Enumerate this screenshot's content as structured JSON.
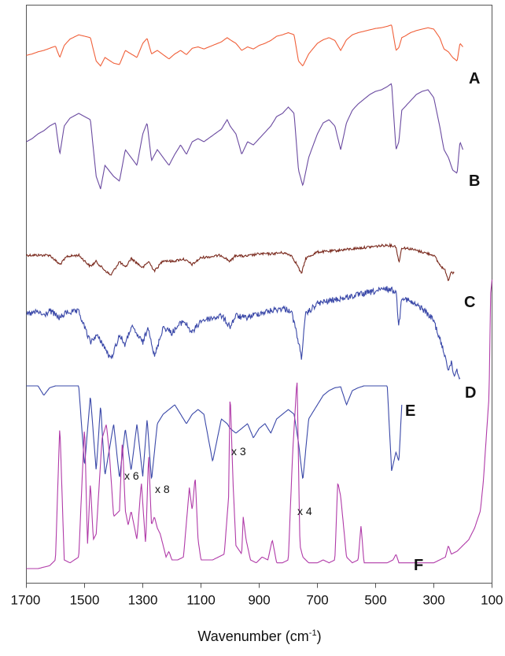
{
  "chart_data": {
    "type": "line",
    "title": "",
    "xlabel": "Wavenumber (cm",
    "xlabel_sup": "-1",
    "xlabel_end": ")",
    "ylabel": "",
    "xlim": [
      1700,
      100
    ],
    "x_reversed": true,
    "grid": false,
    "tick_labels": [
      "1700",
      "1500",
      "1300",
      "1100",
      "900",
      "700",
      "500",
      "300",
      "100"
    ],
    "colors": {
      "A": "#f0603a",
      "B": "#6a4aa0",
      "C": "#7a2a1e",
      "D": "#3a48a8",
      "E": "#3a48a8",
      "F": "#b03aa8"
    },
    "series": [
      {
        "name": "A",
        "label": "A",
        "baseline": 0.1,
        "noise": 0.0,
        "xrange": [
          1700,
          200
        ],
        "x": [
          1700,
          1680,
          1660,
          1640,
          1620,
          1600,
          1585,
          1570,
          1550,
          1520,
          1500,
          1480,
          1460,
          1445,
          1430,
          1400,
          1380,
          1360,
          1340,
          1320,
          1300,
          1285,
          1270,
          1250,
          1230,
          1210,
          1190,
          1170,
          1150,
          1130,
          1110,
          1090,
          1060,
          1030,
          1010,
          1000,
          980,
          960,
          940,
          920,
          900,
          880,
          860,
          840,
          820,
          800,
          780,
          765,
          750,
          730,
          700,
          680,
          660,
          640,
          620,
          600,
          580,
          560,
          540,
          520,
          500,
          480,
          460,
          445,
          430,
          420,
          410,
          400,
          380,
          360,
          340,
          320,
          300,
          280,
          265,
          250,
          235,
          220,
          210,
          200
        ],
        "y": [
          0.47,
          0.45,
          0.42,
          0.4,
          0.37,
          0.34,
          0.5,
          0.33,
          0.24,
          0.18,
          0.2,
          0.22,
          0.55,
          0.62,
          0.5,
          0.58,
          0.6,
          0.4,
          0.45,
          0.5,
          0.3,
          0.23,
          0.45,
          0.4,
          0.46,
          0.52,
          0.45,
          0.4,
          0.46,
          0.37,
          0.35,
          0.38,
          0.33,
          0.28,
          0.22,
          0.25,
          0.3,
          0.4,
          0.35,
          0.38,
          0.33,
          0.3,
          0.26,
          0.2,
          0.18,
          0.15,
          0.18,
          0.55,
          0.62,
          0.45,
          0.3,
          0.25,
          0.22,
          0.26,
          0.4,
          0.25,
          0.18,
          0.15,
          0.13,
          0.11,
          0.09,
          0.08,
          0.06,
          0.04,
          0.4,
          0.36,
          0.22,
          0.2,
          0.15,
          0.12,
          0.1,
          0.08,
          0.1,
          0.22,
          0.38,
          0.42,
          0.5,
          0.55,
          0.3,
          0.35
        ]
      },
      {
        "name": "B",
        "label": "B",
        "baseline": 0.3,
        "noise": 0.0,
        "xrange": [
          1700,
          200
        ],
        "x": [
          1700,
          1680,
          1660,
          1640,
          1620,
          1600,
          1585,
          1570,
          1550,
          1520,
          1500,
          1480,
          1460,
          1445,
          1430,
          1400,
          1380,
          1360,
          1340,
          1320,
          1300,
          1285,
          1270,
          1250,
          1230,
          1210,
          1190,
          1170,
          1150,
          1130,
          1110,
          1090,
          1060,
          1030,
          1010,
          1000,
          980,
          960,
          940,
          920,
          900,
          880,
          860,
          840,
          820,
          800,
          780,
          765,
          750,
          730,
          700,
          680,
          660,
          640,
          620,
          600,
          580,
          560,
          540,
          520,
          500,
          480,
          460,
          445,
          430,
          420,
          410,
          400,
          380,
          360,
          340,
          320,
          300,
          280,
          265,
          250,
          235,
          220,
          210,
          200
        ],
        "y": [
          0.4,
          0.38,
          0.35,
          0.33,
          0.3,
          0.28,
          0.48,
          0.3,
          0.25,
          0.22,
          0.24,
          0.26,
          0.62,
          0.7,
          0.55,
          0.62,
          0.65,
          0.45,
          0.5,
          0.55,
          0.35,
          0.28,
          0.52,
          0.45,
          0.5,
          0.55,
          0.48,
          0.42,
          0.48,
          0.4,
          0.38,
          0.4,
          0.36,
          0.32,
          0.26,
          0.3,
          0.35,
          0.48,
          0.4,
          0.42,
          0.38,
          0.34,
          0.3,
          0.24,
          0.22,
          0.18,
          0.22,
          0.58,
          0.68,
          0.5,
          0.35,
          0.28,
          0.26,
          0.3,
          0.45,
          0.28,
          0.2,
          0.16,
          0.13,
          0.1,
          0.08,
          0.07,
          0.05,
          0.03,
          0.45,
          0.4,
          0.2,
          0.18,
          0.14,
          0.1,
          0.08,
          0.07,
          0.12,
          0.3,
          0.45,
          0.5,
          0.58,
          0.6,
          0.4,
          0.45
        ]
      },
      {
        "name": "C",
        "label": "C",
        "baseline": 0.52,
        "noise": 0.02,
        "xrange": [
          1700,
          230
        ],
        "x": [
          1700,
          1660,
          1620,
          1585,
          1560,
          1520,
          1480,
          1460,
          1440,
          1410,
          1380,
          1360,
          1340,
          1300,
          1280,
          1260,
          1250,
          1230,
          1200,
          1160,
          1130,
          1100,
          1060,
          1030,
          1000,
          980,
          950,
          900,
          860,
          820,
          790,
          770,
          755,
          740,
          700,
          660,
          620,
          580,
          540,
          500,
          460,
          430,
          420,
          410,
          380,
          340,
          300,
          280,
          260,
          250,
          240,
          230
        ],
        "y": [
          0.3,
          0.3,
          0.3,
          0.45,
          0.32,
          0.3,
          0.48,
          0.4,
          0.5,
          0.62,
          0.4,
          0.5,
          0.35,
          0.5,
          0.4,
          0.55,
          0.5,
          0.38,
          0.4,
          0.36,
          0.45,
          0.34,
          0.32,
          0.3,
          0.4,
          0.3,
          0.32,
          0.28,
          0.28,
          0.26,
          0.3,
          0.45,
          0.6,
          0.35,
          0.25,
          0.24,
          0.22,
          0.2,
          0.18,
          0.16,
          0.14,
          0.16,
          0.42,
          0.18,
          0.2,
          0.25,
          0.3,
          0.45,
          0.55,
          0.7,
          0.55,
          0.6
        ]
      },
      {
        "name": "D",
        "label": "D",
        "baseline": 0.62,
        "noise": 0.025,
        "xrange": [
          1700,
          210
        ],
        "x": [
          1700,
          1660,
          1640,
          1620,
          1585,
          1560,
          1520,
          1480,
          1460,
          1440,
          1410,
          1380,
          1360,
          1340,
          1300,
          1280,
          1260,
          1250,
          1230,
          1200,
          1160,
          1130,
          1100,
          1060,
          1030,
          1000,
          980,
          950,
          900,
          860,
          820,
          790,
          770,
          755,
          740,
          700,
          660,
          620,
          580,
          540,
          500,
          460,
          430,
          420,
          410,
          380,
          340,
          300,
          280,
          260,
          250,
          240,
          230,
          220,
          210
        ],
        "y": [
          0.35,
          0.33,
          0.36,
          0.32,
          0.38,
          0.33,
          0.33,
          0.58,
          0.52,
          0.58,
          0.72,
          0.52,
          0.6,
          0.45,
          0.58,
          0.45,
          0.7,
          0.62,
          0.45,
          0.5,
          0.4,
          0.5,
          0.4,
          0.38,
          0.36,
          0.45,
          0.36,
          0.38,
          0.34,
          0.32,
          0.3,
          0.32,
          0.52,
          0.7,
          0.35,
          0.26,
          0.24,
          0.22,
          0.2,
          0.18,
          0.16,
          0.14,
          0.16,
          0.45,
          0.2,
          0.25,
          0.3,
          0.4,
          0.55,
          0.7,
          0.8,
          0.75,
          0.85,
          0.8,
          0.88
        ]
      },
      {
        "name": "E",
        "label": "E",
        "baseline": 0.62,
        "noise": 0.0,
        "xrange": [
          1700,
          410
        ],
        "x": [
          1700,
          1680,
          1660,
          1640,
          1620,
          1600,
          1585,
          1570,
          1550,
          1520,
          1500,
          1480,
          1460,
          1445,
          1430,
          1400,
          1380,
          1360,
          1340,
          1320,
          1300,
          1285,
          1270,
          1250,
          1230,
          1210,
          1190,
          1170,
          1150,
          1130,
          1110,
          1090,
          1060,
          1030,
          1010,
          1000,
          980,
          960,
          940,
          920,
          900,
          880,
          860,
          840,
          820,
          800,
          780,
          765,
          750,
          730,
          700,
          680,
          660,
          640,
          620,
          600,
          580,
          560,
          540,
          520,
          500,
          480,
          460,
          445,
          430,
          420,
          410
        ],
        "y": [
          0.0,
          0.0,
          0.0,
          0.1,
          0.02,
          0.0,
          0.0,
          0.0,
          0.0,
          0.0,
          0.85,
          0.1,
          0.9,
          0.2,
          0.95,
          0.4,
          0.98,
          0.45,
          0.9,
          0.4,
          0.96,
          0.35,
          1.0,
          0.4,
          0.3,
          0.25,
          0.2,
          0.3,
          0.4,
          0.3,
          0.25,
          0.3,
          0.8,
          0.35,
          0.4,
          0.45,
          0.5,
          0.45,
          0.4,
          0.55,
          0.45,
          0.4,
          0.5,
          0.35,
          0.3,
          0.25,
          0.3,
          0.6,
          1.0,
          0.35,
          0.2,
          0.1,
          0.05,
          0.02,
          0.01,
          0.2,
          0.05,
          0.02,
          0.0,
          0.0,
          0.0,
          0.0,
          0.0,
          0.9,
          0.7,
          0.8,
          0.2
        ]
      },
      {
        "name": "F",
        "label": "F",
        "baseline": 0.0,
        "noise": 0.0,
        "xrange": [
          1700,
          100
        ],
        "x": [
          1700,
          1660,
          1620,
          1600,
          1585,
          1570,
          1550,
          1520,
          1500,
          1490,
          1480,
          1470,
          1460,
          1440,
          1425,
          1415,
          1400,
          1380,
          1370,
          1360,
          1350,
          1340,
          1320,
          1305,
          1290,
          1280,
          1270,
          1260,
          1250,
          1240,
          1220,
          1210,
          1200,
          1180,
          1160,
          1140,
          1130,
          1120,
          1110,
          1100,
          1080,
          1060,
          1040,
          1020,
          1005,
          1000,
          990,
          980,
          960,
          955,
          945,
          930,
          910,
          890,
          870,
          855,
          840,
          820,
          800,
          785,
          770,
          760,
          750,
          730,
          700,
          680,
          660,
          640,
          630,
          620,
          600,
          580,
          560,
          550,
          540,
          520,
          500,
          480,
          460,
          440,
          430,
          420,
          410,
          400,
          380,
          360,
          340,
          320,
          300,
          280,
          260,
          250,
          240,
          220,
          200,
          180,
          160,
          140,
          130,
          120,
          110,
          105,
          100
        ],
        "y": [
          0.0,
          0.0,
          0.01,
          0.03,
          0.5,
          0.03,
          0.02,
          0.04,
          0.5,
          0.08,
          0.3,
          0.1,
          0.12,
          0.45,
          0.5,
          0.4,
          0.18,
          0.2,
          0.45,
          0.2,
          0.15,
          0.2,
          0.1,
          0.3,
          0.08,
          0.4,
          0.15,
          0.18,
          0.14,
          0.12,
          0.04,
          0.06,
          0.03,
          0.03,
          0.04,
          0.28,
          0.2,
          0.32,
          0.1,
          0.03,
          0.03,
          0.03,
          0.04,
          0.05,
          0.25,
          0.62,
          0.3,
          0.08,
          0.05,
          0.18,
          0.1,
          0.03,
          0.02,
          0.04,
          0.03,
          0.1,
          0.02,
          0.02,
          0.03,
          0.4,
          0.66,
          0.08,
          0.04,
          0.02,
          0.02,
          0.03,
          0.02,
          0.03,
          0.3,
          0.25,
          0.04,
          0.02,
          0.03,
          0.15,
          0.02,
          0.02,
          0.02,
          0.02,
          0.02,
          0.03,
          0.05,
          0.02,
          0.02,
          0.02,
          0.02,
          0.02,
          0.02,
          0.02,
          0.02,
          0.03,
          0.04,
          0.08,
          0.05,
          0.06,
          0.08,
          0.1,
          0.14,
          0.2,
          0.3,
          0.45,
          0.6,
          0.95,
          1.0
        ]
      }
    ],
    "annotations": [
      "x 6",
      "x 8",
      "x 3",
      "x 4"
    ]
  }
}
